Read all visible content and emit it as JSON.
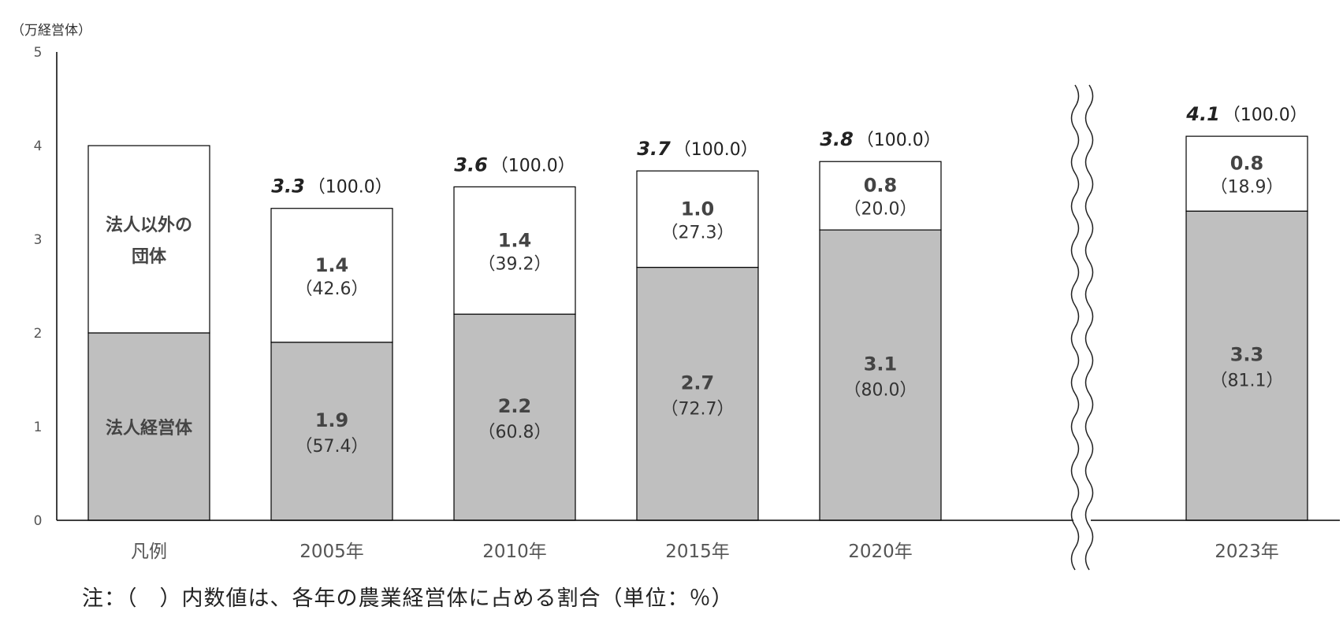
{
  "chart_data": {
    "type": "bar",
    "stacked": true,
    "ylabel": "（万経営体）",
    "ylim": [
      0,
      5
    ],
    "yticks": [
      "0",
      "1",
      "2",
      "3",
      "4",
      "5"
    ],
    "grid": false,
    "legend_bar": {
      "category": "凡例",
      "upper_label_line1": "法人以外の",
      "upper_label_line2": "団体",
      "lower_label": "法人経営体",
      "lower_value": 2,
      "upper_value": 2
    },
    "categories": [
      "2005年",
      "2010年",
      "2015年",
      "2020年",
      "2023年"
    ],
    "series": [
      {
        "name": "法人経営体",
        "color": "#bfbfbf",
        "values": [
          1.9,
          2.2,
          2.7,
          3.1,
          3.3
        ],
        "labels": [
          "1.9",
          "2.2",
          "2.7",
          "3.1",
          "3.3"
        ],
        "pct_labels": [
          "（57.4）",
          "（60.8）",
          "（72.7）",
          "（80.0）",
          "（81.1）"
        ]
      },
      {
        "name": "法人以外の団体",
        "color": "#ffffff",
        "values": [
          1.4,
          1.4,
          1.0,
          0.8,
          0.8
        ],
        "labels": [
          "1.4",
          "1.4",
          "1.0",
          "0.8",
          "0.8"
        ],
        "pct_labels": [
          "（42.6）",
          "（39.2）",
          "（27.3）",
          "（20.0）",
          "（18.9）"
        ]
      }
    ],
    "bar_heights": [
      3.33,
      3.56,
      3.73,
      3.83,
      4.1
    ],
    "totals": [
      "3.3",
      "3.6",
      "3.7",
      "3.8",
      "4.1"
    ],
    "total_pct": "（100.0）",
    "axis_break_before": "2023年"
  },
  "note": "注：（　）内数値は、各年の農業経営体に占める割合（単位：％）"
}
